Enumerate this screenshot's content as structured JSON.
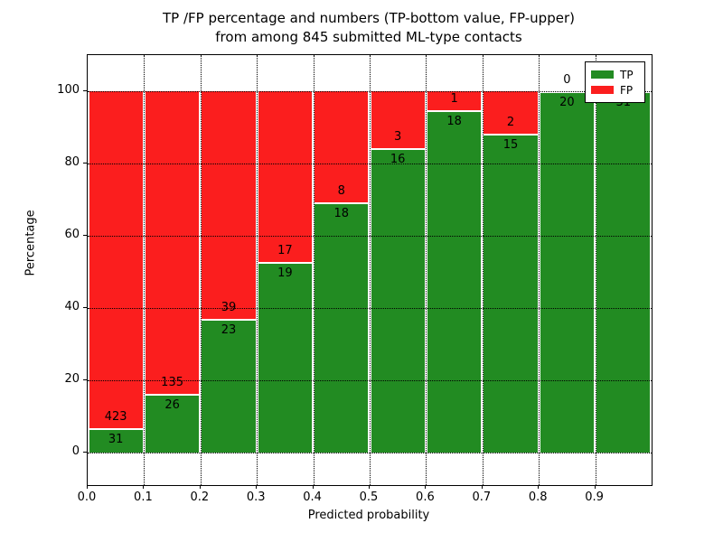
{
  "chart_data": {
    "type": "bar",
    "stacked": true,
    "title_line1": "TP /FP percentage and numbers (TP-bottom value, FP-upper)",
    "title_line2": "from among 845 submitted ML-type contacts",
    "xlabel": "Predicted probability",
    "ylabel": "Percentage",
    "total_contacts": 845,
    "x_bins": [
      0.0,
      0.1,
      0.2,
      0.3,
      0.4,
      0.5,
      0.6,
      0.7,
      0.8,
      0.9
    ],
    "bin_width": 0.1,
    "x_tick_labels": [
      "0.0",
      "0.1",
      "0.2",
      "0.3",
      "0.4",
      "0.5",
      "0.6",
      "0.7",
      "0.8",
      "0.9"
    ],
    "y_ticks": [
      0,
      20,
      40,
      60,
      80,
      100
    ],
    "ylim": [
      -9,
      110
    ],
    "xlim": [
      0.0,
      1.0
    ],
    "grid": true,
    "series": [
      {
        "name": "TP",
        "color": "#228b22",
        "values": [
          31,
          26,
          23,
          19,
          18,
          16,
          18,
          15,
          20,
          31
        ]
      },
      {
        "name": "FP",
        "color": "#fb1e1e",
        "values": [
          423,
          135,
          39,
          17,
          8,
          3,
          1,
          2,
          0,
          0
        ]
      }
    ],
    "tp_percent": [
      6.8,
      16.1,
      37.1,
      52.8,
      69.2,
      84.2,
      94.7,
      88.2,
      100.0,
      100.0
    ],
    "legend": {
      "position": "upper right",
      "entries": [
        "TP",
        "FP"
      ]
    }
  }
}
